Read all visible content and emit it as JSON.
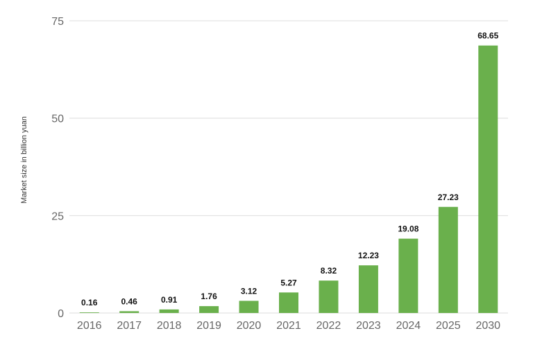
{
  "chart_data": {
    "type": "bar",
    "title": "",
    "xlabel": "",
    "ylabel": "Market size in billion yuan",
    "categories": [
      "2016",
      "2017",
      "2018",
      "2019",
      "2020",
      "2021",
      "2022",
      "2023",
      "2024",
      "2025",
      "2030"
    ],
    "values": [
      0.16,
      0.46,
      0.91,
      1.76,
      3.12,
      5.27,
      8.32,
      12.23,
      19.08,
      27.23,
      68.65
    ],
    "data_labels": [
      "0.16",
      "0.46",
      "0.91",
      "1.76",
      "3.12",
      "5.27",
      "8.32",
      "12.23",
      "19.08",
      "27.23",
      "68.65"
    ],
    "ylim": [
      0,
      75
    ],
    "yticks": [
      0,
      25,
      50,
      75
    ],
    "ytick_labels": [
      "0",
      "25",
      "50",
      "75"
    ],
    "grid": true,
    "legend": "none",
    "bar_color": "#6ab04c",
    "grid_color": "#dddddd"
  }
}
